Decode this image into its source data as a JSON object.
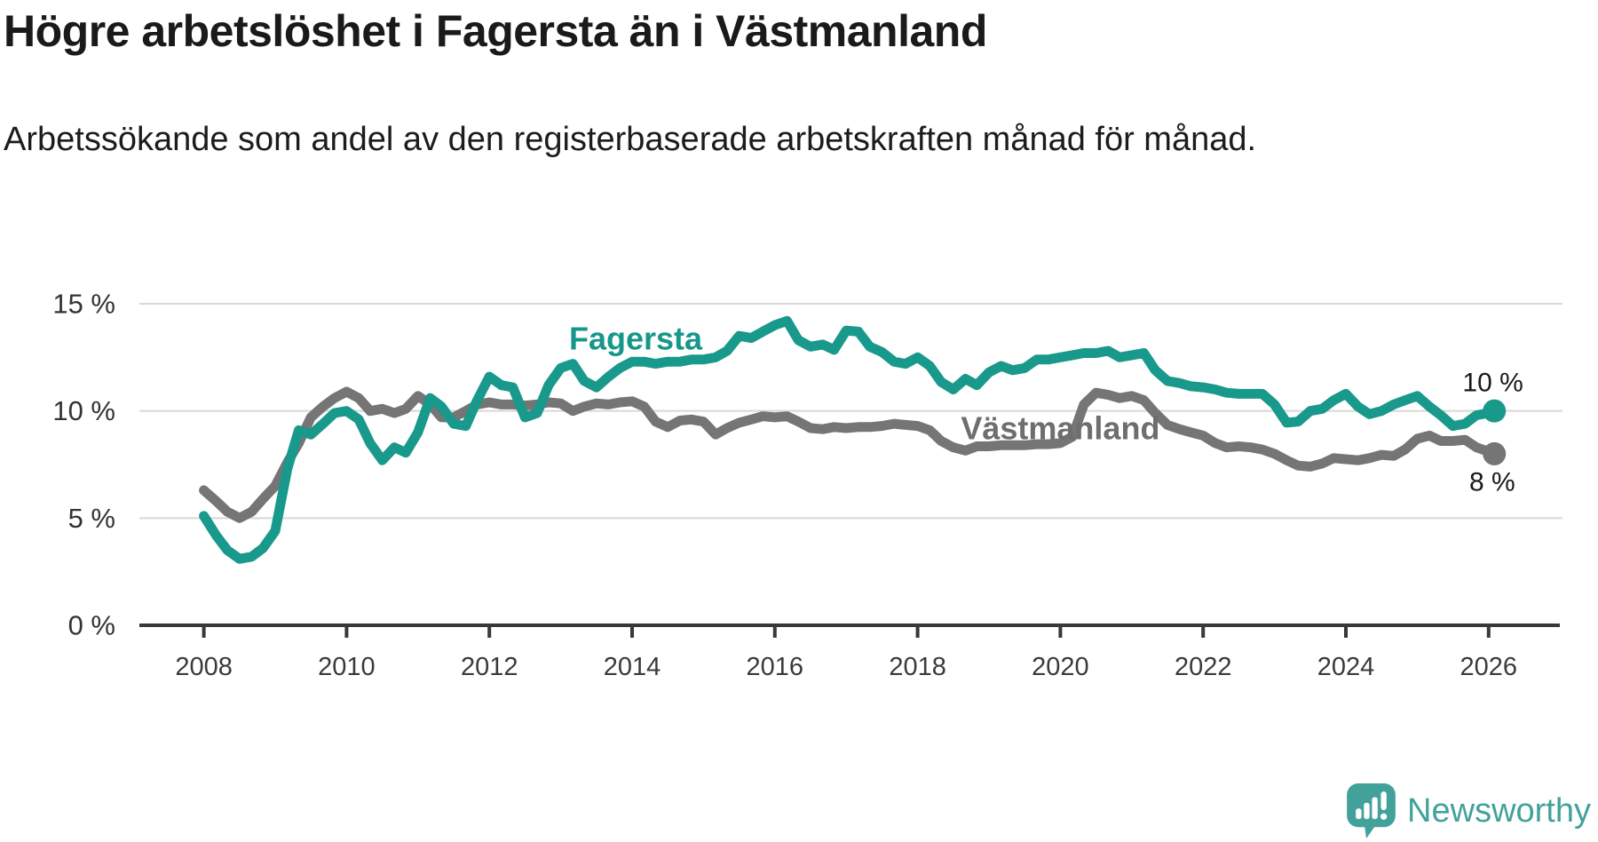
{
  "header": {
    "title": "Högre arbetslöshet i Fagersta än i Västmanland",
    "subtitle": "Arbetssökande som andel av den registerbaserade arbetskraften månad för månad."
  },
  "footer": {
    "brand": "Newsworthy",
    "logo_color": "#43a19b",
    "logo_icon": "speech-bubble-bar-chart-exclamation"
  },
  "chart_data": {
    "type": "line",
    "title": "Högre arbetslöshet i Fagersta än i Västmanland",
    "subtitle": "Arbetssökande som andel av den registerbaserade arbetskraften månad för månad.",
    "xlabel": "",
    "ylabel": "",
    "grid": "horizontal",
    "legend_position": "inline-labels",
    "x_axis": {
      "range": [
        2007.1,
        2027.0
      ],
      "ticks": [
        {
          "value": 2008,
          "label": "2008"
        },
        {
          "value": 2010,
          "label": "2010"
        },
        {
          "value": 2012,
          "label": "2012"
        },
        {
          "value": 2014,
          "label": "2014"
        },
        {
          "value": 2016,
          "label": "2016"
        },
        {
          "value": 2018,
          "label": "2018"
        },
        {
          "value": 2020,
          "label": "2020"
        },
        {
          "value": 2022,
          "label": "2022"
        },
        {
          "value": 2024,
          "label": "2024"
        },
        {
          "value": 2026,
          "label": "2026"
        }
      ]
    },
    "y_axis": {
      "unit": "%",
      "range": [
        0,
        15.5
      ],
      "ticks": [
        {
          "value": 0,
          "label": "0 %"
        },
        {
          "value": 5,
          "label": "5 %"
        },
        {
          "value": 10,
          "label": "10 %"
        },
        {
          "value": 15,
          "label": "15 %"
        }
      ],
      "gridlines": [
        5,
        10,
        15
      ]
    },
    "series": [
      {
        "name": "Västmanland",
        "color": "#757575",
        "label": {
          "text": "Västmanland",
          "year": 2020.0,
          "value": 9.2,
          "color": "#6e6e6e"
        },
        "end_label": {
          "text": "8 %",
          "year": 2026.05,
          "value": 6.67
        },
        "end_dot": true,
        "points": [
          [
            2008,
            6.3
          ],
          [
            2008.17,
            5.8
          ],
          [
            2008.33,
            5.3
          ],
          [
            2008.5,
            5.0
          ],
          [
            2008.67,
            5.3
          ],
          [
            2008.83,
            5.9
          ],
          [
            2009,
            6.5
          ],
          [
            2009.17,
            7.6
          ],
          [
            2009.33,
            8.5
          ],
          [
            2009.5,
            9.7
          ],
          [
            2009.67,
            10.2
          ],
          [
            2009.83,
            10.6
          ],
          [
            2010,
            10.9
          ],
          [
            2010.17,
            10.6
          ],
          [
            2010.33,
            10.0
          ],
          [
            2010.5,
            10.1
          ],
          [
            2010.67,
            9.9
          ],
          [
            2010.83,
            10.1
          ],
          [
            2011,
            10.7
          ],
          [
            2011.17,
            10.3
          ],
          [
            2011.33,
            9.7
          ],
          [
            2011.5,
            9.7
          ],
          [
            2011.67,
            10.0
          ],
          [
            2011.83,
            10.3
          ],
          [
            2012,
            10.4
          ],
          [
            2012.17,
            10.3
          ],
          [
            2012.33,
            10.3
          ],
          [
            2012.5,
            10.25
          ],
          [
            2012.67,
            10.3
          ],
          [
            2012.83,
            10.4
          ],
          [
            2013,
            10.35
          ],
          [
            2013.17,
            10.0
          ],
          [
            2013.33,
            10.2
          ],
          [
            2013.5,
            10.35
          ],
          [
            2013.67,
            10.3
          ],
          [
            2013.83,
            10.4
          ],
          [
            2014,
            10.45
          ],
          [
            2014.17,
            10.2
          ],
          [
            2014.33,
            9.5
          ],
          [
            2014.5,
            9.25
          ],
          [
            2014.67,
            9.55
          ],
          [
            2014.83,
            9.6
          ],
          [
            2015,
            9.5
          ],
          [
            2015.17,
            8.9
          ],
          [
            2015.33,
            9.2
          ],
          [
            2015.5,
            9.45
          ],
          [
            2015.67,
            9.6
          ],
          [
            2015.83,
            9.75
          ],
          [
            2016,
            9.7
          ],
          [
            2016.17,
            9.75
          ],
          [
            2016.33,
            9.5
          ],
          [
            2016.5,
            9.2
          ],
          [
            2016.67,
            9.15
          ],
          [
            2016.83,
            9.25
          ],
          [
            2017,
            9.2
          ],
          [
            2017.17,
            9.25
          ],
          [
            2017.33,
            9.25
          ],
          [
            2017.5,
            9.3
          ],
          [
            2017.67,
            9.4
          ],
          [
            2017.83,
            9.35
          ],
          [
            2018,
            9.3
          ],
          [
            2018.17,
            9.1
          ],
          [
            2018.33,
            8.6
          ],
          [
            2018.5,
            8.3
          ],
          [
            2018.67,
            8.15
          ],
          [
            2018.83,
            8.35
          ],
          [
            2019,
            8.35
          ],
          [
            2019.17,
            8.4
          ],
          [
            2019.33,
            8.4
          ],
          [
            2019.5,
            8.4
          ],
          [
            2019.67,
            8.45
          ],
          [
            2019.83,
            8.45
          ],
          [
            2020,
            8.5
          ],
          [
            2020.17,
            8.8
          ],
          [
            2020.33,
            10.3
          ],
          [
            2020.5,
            10.85
          ],
          [
            2020.67,
            10.75
          ],
          [
            2020.83,
            10.6
          ],
          [
            2021,
            10.7
          ],
          [
            2021.17,
            10.5
          ],
          [
            2021.33,
            9.9
          ],
          [
            2021.5,
            9.35
          ],
          [
            2021.67,
            9.15
          ],
          [
            2021.83,
            9.0
          ],
          [
            2022,
            8.85
          ],
          [
            2022.17,
            8.5
          ],
          [
            2022.33,
            8.3
          ],
          [
            2022.5,
            8.35
          ],
          [
            2022.67,
            8.3
          ],
          [
            2022.83,
            8.2
          ],
          [
            2023,
            8.0
          ],
          [
            2023.17,
            7.7
          ],
          [
            2023.33,
            7.45
          ],
          [
            2023.5,
            7.4
          ],
          [
            2023.67,
            7.55
          ],
          [
            2023.83,
            7.8
          ],
          [
            2024,
            7.75
          ],
          [
            2024.17,
            7.7
          ],
          [
            2024.33,
            7.8
          ],
          [
            2024.5,
            7.95
          ],
          [
            2024.67,
            7.9
          ],
          [
            2024.83,
            8.2
          ],
          [
            2025,
            8.7
          ],
          [
            2025.17,
            8.85
          ],
          [
            2025.33,
            8.6
          ],
          [
            2025.5,
            8.6
          ],
          [
            2025.67,
            8.65
          ],
          [
            2025.83,
            8.3
          ],
          [
            2026,
            8.1
          ],
          [
            2026.08,
            8.0
          ]
        ]
      },
      {
        "name": "Fagersta",
        "color": "#18998b",
        "label": {
          "text": "Fagersta",
          "year": 2014.05,
          "value": 13.38,
          "color": "#17978a"
        },
        "end_label": {
          "text": "10 %",
          "year": 2026.06,
          "value": 11.31
        },
        "end_dot": true,
        "points": [
          [
            2008,
            5.1
          ],
          [
            2008.17,
            4.2
          ],
          [
            2008.33,
            3.5
          ],
          [
            2008.5,
            3.1
          ],
          [
            2008.67,
            3.2
          ],
          [
            2008.83,
            3.6
          ],
          [
            2009,
            4.4
          ],
          [
            2009.17,
            7.3
          ],
          [
            2009.33,
            9.1
          ],
          [
            2009.5,
            8.9
          ],
          [
            2009.67,
            9.4
          ],
          [
            2009.83,
            9.9
          ],
          [
            2010,
            10.0
          ],
          [
            2010.17,
            9.6
          ],
          [
            2010.33,
            8.5
          ],
          [
            2010.5,
            7.7
          ],
          [
            2010.67,
            8.3
          ],
          [
            2010.83,
            8.05
          ],
          [
            2011,
            9.0
          ],
          [
            2011.17,
            10.6
          ],
          [
            2011.33,
            10.2
          ],
          [
            2011.5,
            9.4
          ],
          [
            2011.67,
            9.3
          ],
          [
            2011.83,
            10.5
          ],
          [
            2012,
            11.6
          ],
          [
            2012.17,
            11.2
          ],
          [
            2012.33,
            11.1
          ],
          [
            2012.5,
            9.7
          ],
          [
            2012.67,
            9.9
          ],
          [
            2012.83,
            11.2
          ],
          [
            2013,
            12.0
          ],
          [
            2013.17,
            12.2
          ],
          [
            2013.33,
            11.4
          ],
          [
            2013.5,
            11.1
          ],
          [
            2013.67,
            11.6
          ],
          [
            2013.83,
            12.0
          ],
          [
            2014,
            12.3
          ],
          [
            2014.17,
            12.3
          ],
          [
            2014.33,
            12.2
          ],
          [
            2014.5,
            12.3
          ],
          [
            2014.67,
            12.3
          ],
          [
            2014.83,
            12.4
          ],
          [
            2015,
            12.4
          ],
          [
            2015.17,
            12.5
          ],
          [
            2015.33,
            12.8
          ],
          [
            2015.5,
            13.5
          ],
          [
            2015.67,
            13.4
          ],
          [
            2015.83,
            13.7
          ],
          [
            2016,
            14.0
          ],
          [
            2016.17,
            14.2
          ],
          [
            2016.33,
            13.3
          ],
          [
            2016.5,
            13.0
          ],
          [
            2016.67,
            13.1
          ],
          [
            2016.83,
            12.85
          ],
          [
            2017,
            13.75
          ],
          [
            2017.17,
            13.7
          ],
          [
            2017.33,
            13.0
          ],
          [
            2017.5,
            12.75
          ],
          [
            2017.67,
            12.3
          ],
          [
            2017.83,
            12.2
          ],
          [
            2018,
            12.5
          ],
          [
            2018.17,
            12.1
          ],
          [
            2018.33,
            11.35
          ],
          [
            2018.5,
            11.0
          ],
          [
            2018.67,
            11.5
          ],
          [
            2018.83,
            11.2
          ],
          [
            2019,
            11.8
          ],
          [
            2019.17,
            12.1
          ],
          [
            2019.33,
            11.9
          ],
          [
            2019.5,
            12.0
          ],
          [
            2019.67,
            12.4
          ],
          [
            2019.83,
            12.4
          ],
          [
            2020,
            12.5
          ],
          [
            2020.17,
            12.6
          ],
          [
            2020.33,
            12.7
          ],
          [
            2020.5,
            12.7
          ],
          [
            2020.67,
            12.8
          ],
          [
            2020.83,
            12.5
          ],
          [
            2021,
            12.6
          ],
          [
            2021.17,
            12.7
          ],
          [
            2021.33,
            11.9
          ],
          [
            2021.5,
            11.4
          ],
          [
            2021.67,
            11.3
          ],
          [
            2021.83,
            11.15
          ],
          [
            2022,
            11.1
          ],
          [
            2022.17,
            11.0
          ],
          [
            2022.33,
            10.85
          ],
          [
            2022.5,
            10.8
          ],
          [
            2022.67,
            10.8
          ],
          [
            2022.83,
            10.8
          ],
          [
            2023,
            10.3
          ],
          [
            2023.17,
            9.45
          ],
          [
            2023.33,
            9.5
          ],
          [
            2023.5,
            10.0
          ],
          [
            2023.67,
            10.1
          ],
          [
            2023.83,
            10.5
          ],
          [
            2024,
            10.8
          ],
          [
            2024.17,
            10.2
          ],
          [
            2024.33,
            9.85
          ],
          [
            2024.5,
            10.0
          ],
          [
            2024.67,
            10.3
          ],
          [
            2024.83,
            10.5
          ],
          [
            2025,
            10.7
          ],
          [
            2025.17,
            10.2
          ],
          [
            2025.33,
            9.8
          ],
          [
            2025.5,
            9.3
          ],
          [
            2025.67,
            9.4
          ],
          [
            2025.83,
            9.8
          ],
          [
            2026,
            9.9
          ],
          [
            2026.08,
            10.0
          ]
        ]
      }
    ]
  }
}
